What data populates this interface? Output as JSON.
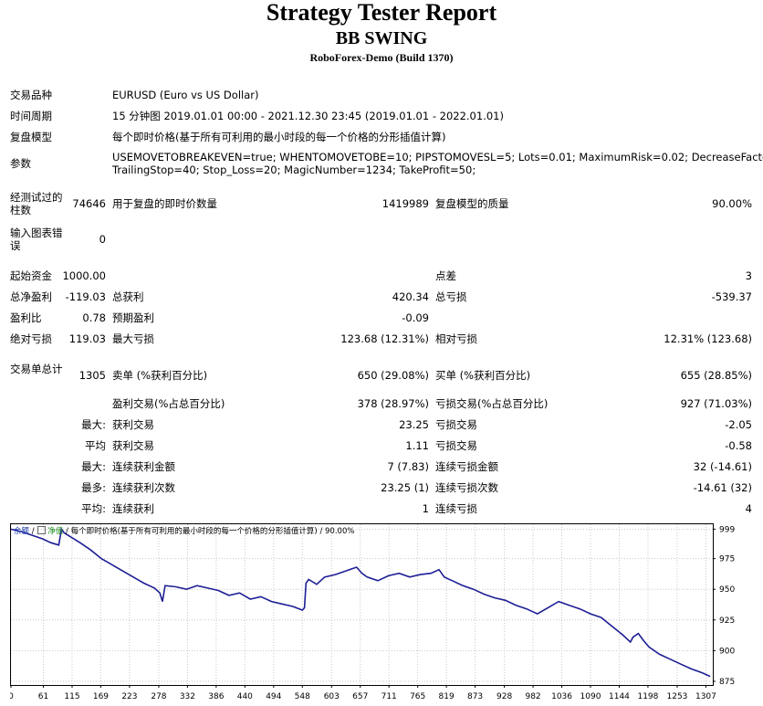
{
  "header": {
    "title": "Strategy Tester Report",
    "subtitle": "BB SWING",
    "broker": "RoboForex-Demo (Build 1370)"
  },
  "settings": {
    "symbol_label": "交易品种",
    "symbol_value": "EURUSD (Euro vs US Dollar)",
    "period_label": "时间周期",
    "period_value": "15 分钟图 2019.01.01 00:00 - 2021.12.30 23:45 (2019.01.01 - 2022.01.01)",
    "model_label": "复盘模型",
    "model_value": "每个即时价格(基于所有可利用的最小时段的每一个价格的分形插值计算)",
    "params_label": "参数",
    "params_line1": "USEMOVETOBREAKEVEN=true; WHENTOMOVETOBE=10; PIPSTOMOVESL=5; Lots=0.01; MaximumRisk=0.02; DecreaseFactor=3;",
    "params_line2": "TrailingStop=40; Stop_Loss=20; MagicNumber=1234; TakeProfit=50;"
  },
  "stats": {
    "bars_label": "经测试过的柱数",
    "bars_value": "74646",
    "ticks_label": "用于复盘的即时价数量",
    "ticks_value": "1419989",
    "quality_label": "复盘模型的质量",
    "quality_value": "90.00%",
    "errors_label": "输入图表错误",
    "errors_value": "0",
    "deposit_label": "起始资金",
    "deposit_value": "1000.00",
    "spread_label": "点差",
    "spread_value": "3",
    "net_label": "总净盈利",
    "net_value": "-119.03",
    "gross_profit_label": "总获利",
    "gross_profit_value": "420.34",
    "gross_loss_label": "总亏损",
    "gross_loss_value": "-539.37",
    "pf_label": "盈利比",
    "pf_value": "0.78",
    "expected_label": "预期盈利",
    "expected_value": "-0.09",
    "abs_dd_label": "绝对亏损",
    "abs_dd_value": "119.03",
    "max_dd_label": "最大亏损",
    "max_dd_value": "123.68 (12.31%)",
    "rel_dd_label": "相对亏损",
    "rel_dd_value": "12.31% (123.68)",
    "trades_label": "交易单总计",
    "trades_value": "1305",
    "short_label": "卖单 (%获利百分比)",
    "short_value": "650 (29.08%)",
    "long_label": "买单 (%获利百分比)",
    "long_value": "655 (28.85%)",
    "profit_trades_label": "盈利交易(%占总百分比)",
    "profit_trades_value": "378 (28.97%)",
    "loss_trades_label": "亏损交易(%占总百分比)",
    "loss_trades_value": "927 (71.03%)",
    "largest_label": "最大:",
    "largest_profit_label": "获利交易",
    "largest_profit_value": "23.25",
    "largest_loss_label": "亏损交易",
    "largest_loss_value": "-2.05",
    "average_label": "平均",
    "average_profit_label": "获利交易",
    "average_profit_value": "1.11",
    "average_loss_label": "亏损交易",
    "average_loss_value": "-0.58",
    "max_consec_label": "最大:",
    "max_consec_wins_label": "连续获利金额",
    "max_consec_wins_value": "7 (7.83)",
    "max_consec_losses_label": "连续亏损金额",
    "max_consec_losses_value": "32 (-14.61)",
    "maximal_label": "最多:",
    "maximal_profit_label": "连续获利次数",
    "maximal_profit_value": "23.25 (1)",
    "maximal_loss_label": "连续亏损次数",
    "maximal_loss_value": "-14.61 (32)",
    "avg_consec_label": "平均:",
    "avg_consec_wins_label": "连续获利",
    "avg_consec_wins_value": "1",
    "avg_consec_losses_label": "连续亏损",
    "avg_consec_losses_value": "4"
  },
  "chart_legend": {
    "balance": "余额",
    "equity": "净值",
    "model": "每个即时价格(基于所有可利用的最小时段的每一个价格的分形插值计算)",
    "quality": "90.00%"
  },
  "colors": {
    "balance_line": "#1e1e96",
    "grid": "#c8c8c8",
    "frame": "#000000"
  },
  "chart_data": {
    "type": "line",
    "title": "",
    "xlabel": "",
    "ylabel": "",
    "x_ticks": [
      0,
      61,
      115,
      169,
      223,
      278,
      332,
      386,
      440,
      494,
      548,
      603,
      657,
      711,
      765,
      819,
      873,
      928,
      982,
      1036,
      1090,
      1144,
      1198,
      1253,
      1307
    ],
    "y_ticks": [
      875,
      900,
      925,
      950,
      975,
      999
    ],
    "xlim": [
      0,
      1320
    ],
    "ylim": [
      872,
      1003
    ],
    "grid": true,
    "series": [
      {
        "values_x": [
          0,
          20,
          40,
          60,
          75,
          90,
          95,
          100,
          115,
          130,
          150,
          170,
          190,
          210,
          230,
          250,
          270,
          280,
          285,
          290,
          310,
          330,
          350,
          370,
          390,
          410,
          430,
          450,
          470,
          490,
          510,
          530,
          548,
          552,
          555,
          560,
          575,
          590,
          610,
          630,
          650,
          660,
          670,
          690,
          710,
          730,
          750,
          770,
          790,
          805,
          815,
          830,
          850,
          870,
          890,
          910,
          930,
          950,
          970,
          990,
          1010,
          1030,
          1050,
          1070,
          1090,
          1110,
          1130,
          1150,
          1165,
          1170,
          1180,
          1190,
          1200,
          1220,
          1240,
          1260,
          1280,
          1300,
          1315
        ],
        "values_y": [
          999,
          997,
          994,
          991,
          988,
          986,
          999,
          996,
          992,
          988,
          982,
          975,
          970,
          965,
          960,
          955,
          951,
          947,
          940,
          953,
          952,
          950,
          953,
          951,
          949,
          945,
          947,
          942,
          944,
          940,
          938,
          936,
          933,
          935,
          955,
          958,
          954,
          960,
          962,
          965,
          968,
          963,
          960,
          957,
          961,
          963,
          960,
          962,
          963,
          966,
          960,
          957,
          953,
          950,
          946,
          943,
          941,
          937,
          934,
          930,
          935,
          940,
          937,
          934,
          930,
          927,
          920,
          913,
          907,
          911,
          914,
          908,
          903,
          897,
          893,
          889,
          885,
          882,
          879
        ]
      }
    ]
  }
}
